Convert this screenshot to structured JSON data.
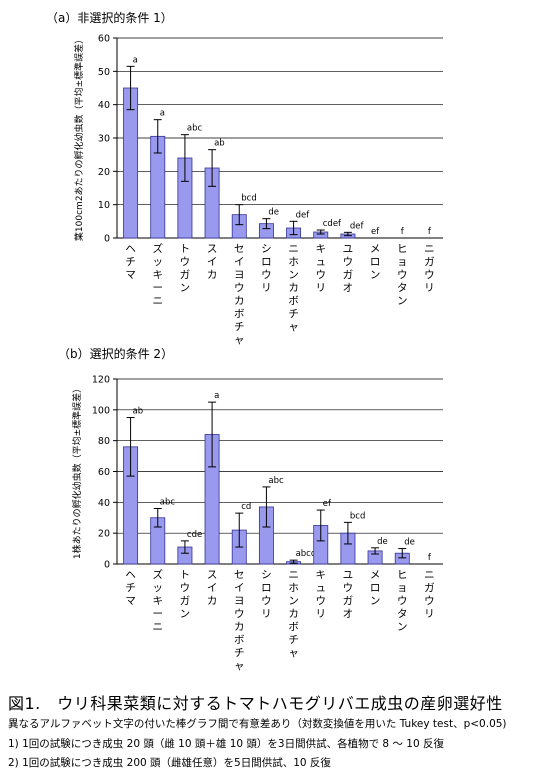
{
  "figure": {
    "caption": "図1.　ウリ科果菜類に対するトマトハモグリバエ成虫の産卵選好性",
    "notes": [
      "異なるアルファベット文字の付いた棒グラフ間で有意差あり（対数変換値を用いた Tukey test、p<0.05)",
      "1) 1回の試験につき成虫 20 頭（雌 10 頭＋雄 10 頭）を3日間供試、各植物で 8 ～ 10 反復",
      "2) 1回の試験につき成虫 200 頭（雌雄任意）を5日間供試、10 反復"
    ]
  },
  "colors": {
    "bar": "#9999ee",
    "bar_stroke": "#333399",
    "axis": "#000000"
  },
  "chart_data": [
    {
      "type": "bar",
      "title": "（a）非選択的条件 1）",
      "ylabel": "葉100cm2あたりの孵化幼虫数（平均±標準誤差）",
      "ylim": [
        0,
        60
      ],
      "yticks": [
        0,
        10,
        20,
        30,
        40,
        50,
        60
      ],
      "categories": [
        "ヘチマ",
        "ズッキーニ",
        "トウガン",
        "スイカ",
        "セイヨウカボチャ",
        "シロウリ",
        "ニホンカボチャ",
        "キュウリ",
        "ユウガオ",
        "メロン",
        "ヒョウタン",
        "ニガウリ"
      ],
      "values": [
        45,
        30.5,
        24,
        21,
        7,
        4.3,
        3,
        1.8,
        1.2,
        0,
        0,
        0
      ],
      "errors": [
        6.5,
        5,
        7,
        5.5,
        3,
        1.5,
        2,
        0.6,
        0.5,
        0,
        0,
        0
      ],
      "letters": [
        "a",
        "a",
        "abc",
        "ab",
        "bcd",
        "de",
        "def",
        "cdef",
        "def",
        "ef",
        "f",
        "f"
      ]
    },
    {
      "type": "bar",
      "title": "（b）選択的条件 2）",
      "ylabel": "1株あたりの孵化幼虫数（平均±標準誤差）",
      "ylim": [
        0,
        120
      ],
      "yticks": [
        0,
        20,
        40,
        60,
        80,
        100,
        120
      ],
      "categories": [
        "ヘチマ",
        "ズッキーニ",
        "トウガン",
        "スイカ",
        "セイヨウカボチャ",
        "シロウリ",
        "ニホンカボチャ",
        "キュウリ",
        "ユウガオ",
        "メロン",
        "ヒョウタン",
        "ニガウリ"
      ],
      "values": [
        76,
        30,
        11,
        84,
        22,
        37,
        1.5,
        25,
        20,
        8.5,
        7,
        0
      ],
      "errors": [
        19,
        6,
        4,
        21,
        11,
        13,
        1,
        10,
        7,
        2,
        3,
        0
      ],
      "letters": [
        "ab",
        "abc",
        "cde",
        "a",
        "cd",
        "abc",
        "abcd",
        "ef",
        "bcd",
        "de",
        "de",
        "f"
      ]
    }
  ]
}
